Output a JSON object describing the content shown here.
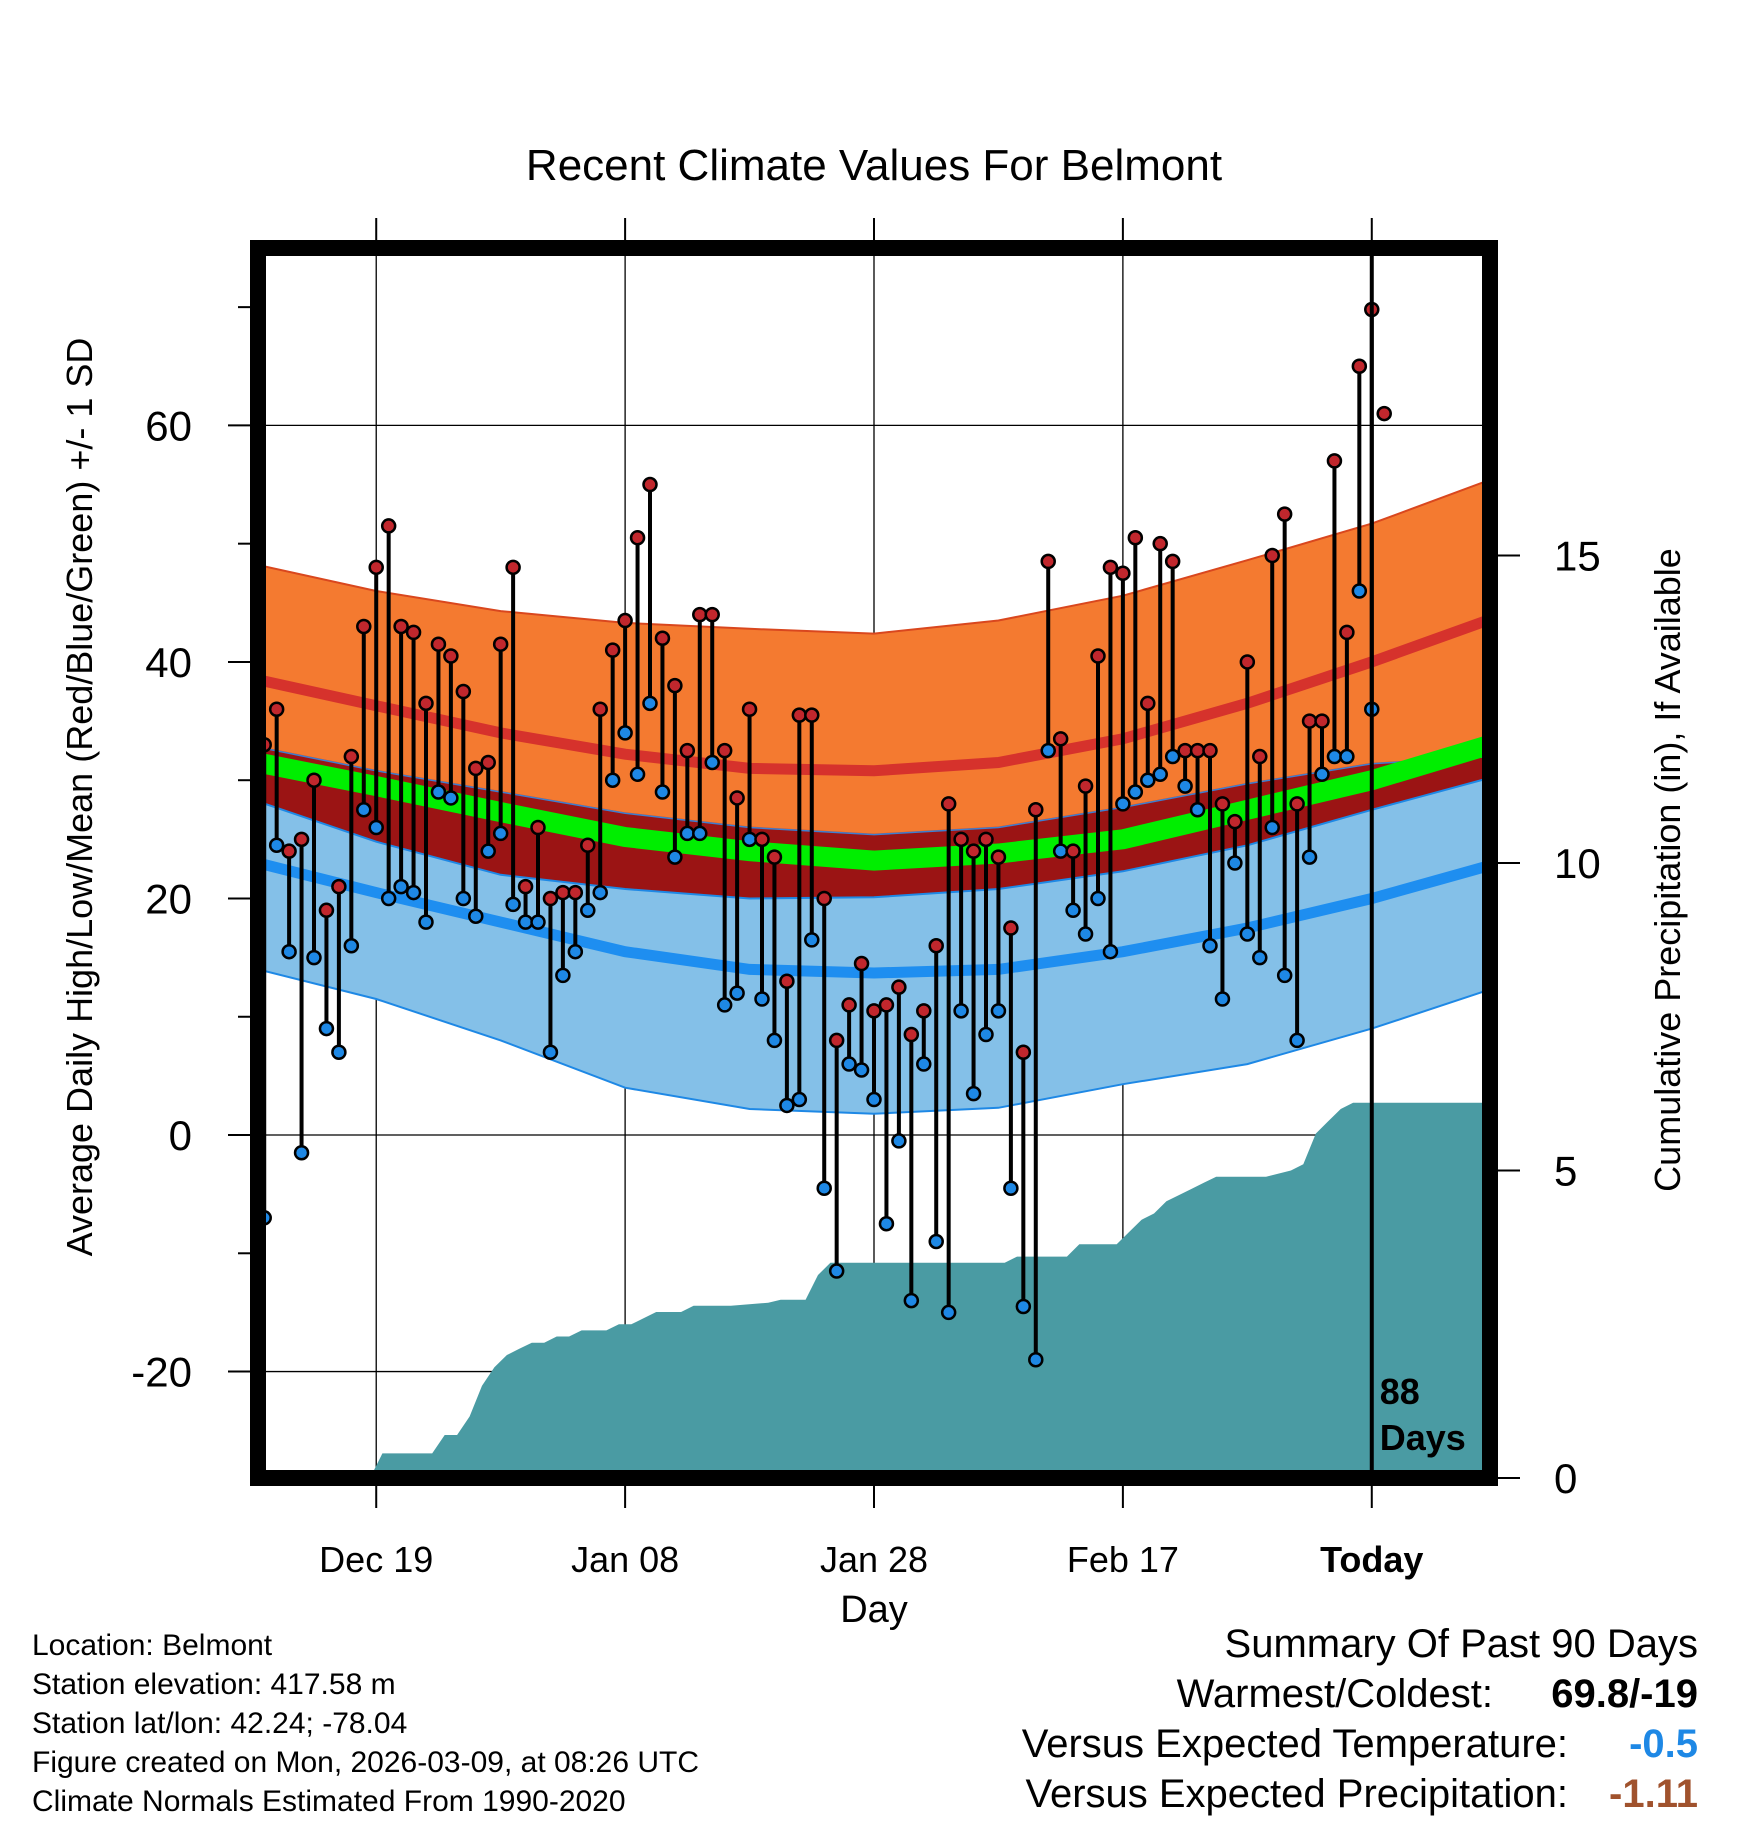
{
  "chart_data": {
    "type": "line",
    "title": "Recent Climate Values For Belmont",
    "xlabel": "Day",
    "ylabel": "Average Daily High/Low/Mean (Red/Blue/Green) +/- 1 SD",
    "y2label": "Cumulative Precipitation (in), If Available",
    "xlim": [
      -89.5,
      9.5
    ],
    "ylim": [
      -29,
      75
    ],
    "y2lim": [
      0,
      20
    ],
    "yticks": [
      -20,
      0,
      20,
      40,
      60
    ],
    "y2ticks": [
      0,
      5,
      10,
      15
    ],
    "xticks": [
      {
        "day": -80,
        "label": "Dec 19"
      },
      {
        "day": -60,
        "label": "Jan 08"
      },
      {
        "day": -40,
        "label": "Jan 28"
      },
      {
        "day": -20,
        "label": "Feb 17"
      },
      {
        "day": 0,
        "label": "Today"
      }
    ],
    "today_marker": {
      "day": 0,
      "label_line1": "88",
      "label_line2": "Days"
    },
    "normals": {
      "days": [
        -89.5,
        -80,
        -70,
        -60,
        -50,
        -40,
        -30,
        -20,
        -10,
        0,
        9.5
      ],
      "high_mean": [
        38.5,
        36.3,
        34.0,
        32.2,
        31.0,
        30.8,
        31.5,
        33.5,
        36.5,
        40.0,
        43.6
      ],
      "high_sd_upper": [
        48.2,
        46.0,
        44.3,
        43.3,
        42.8,
        42.4,
        43.5,
        45.6,
        48.6,
        51.7,
        55.4
      ],
      "low_mean": [
        23.0,
        20.5,
        18.0,
        15.5,
        14.0,
        13.7,
        14.0,
        15.5,
        17.5,
        20.0,
        22.8
      ],
      "low_sd_lower": [
        14.0,
        11.5,
        8.0,
        4.0,
        2.2,
        1.8,
        2.3,
        4.3,
        6.0,
        9.0,
        12.3
      ],
      "mean": [
        31.5,
        29.5,
        27.3,
        25.2,
        24.0,
        23.2,
        23.8,
        25.0,
        27.5,
        30.0,
        33.0
      ],
      "mean_sd_upper": [
        32.8,
        30.8,
        29.0,
        27.2,
        26.0,
        25.4,
        26.0,
        27.7,
        29.7,
        31.4,
        32.0
      ],
      "mean_sd_lower": [
        28.2,
        24.8,
        22.0,
        20.8,
        20.0,
        20.1,
        20.8,
        22.3,
        24.5,
        27.5,
        30.2
      ]
    },
    "series": [
      {
        "name": "High",
        "color": "#c1272d",
        "values": [
          33.0,
          36.0,
          24.0,
          25.0,
          30.0,
          19.0,
          21.0,
          32.0,
          43.0,
          48.0,
          51.5,
          43.0,
          42.5,
          36.5,
          41.5,
          40.5,
          37.5,
          31.0,
          31.5,
          41.5,
          48.0,
          21.0,
          26.0,
          20.0,
          20.5,
          20.5,
          24.5,
          36.0,
          41.0,
          43.5,
          50.5,
          55.0,
          42.0,
          38.0,
          32.5,
          44.0,
          44.0,
          32.5,
          28.5,
          36.0,
          25.0,
          23.5,
          13.0,
          35.5,
          35.5,
          20.0,
          8.0,
          11.0,
          14.5,
          10.5,
          11.0,
          12.5,
          8.5,
          10.5,
          16.0,
          28.0,
          25.0,
          24.0,
          25.0,
          23.5,
          17.5,
          7.0,
          27.5,
          48.5,
          33.5,
          24.0,
          29.5,
          40.5,
          48.0,
          47.5,
          50.5,
          36.5,
          50.0,
          48.5,
          32.5,
          32.5,
          32.5,
          28.0,
          26.5,
          40.0,
          32.0,
          49.0,
          52.5,
          28.0,
          35.0,
          35.0,
          57.0,
          42.5,
          65.0,
          69.8,
          61.0
        ]
      },
      {
        "name": "Low",
        "color": "#1e88e5",
        "values": [
          -7.0,
          24.5,
          15.5,
          -1.5,
          15.0,
          9.0,
          7.0,
          16.0,
          27.5,
          26.0,
          20.0,
          21.0,
          20.5,
          18.0,
          29.0,
          28.5,
          20.0,
          18.5,
          24.0,
          25.5,
          19.5,
          18.0,
          18.0,
          7.0,
          13.5,
          15.5,
          19.0,
          20.5,
          30.0,
          34.0,
          30.5,
          36.5,
          29.0,
          23.5,
          25.5,
          25.5,
          31.5,
          11.0,
          12.0,
          25.0,
          11.5,
          8.0,
          2.5,
          3.0,
          16.5,
          -4.5,
          -11.5,
          6.0,
          5.5,
          3.0,
          -7.5,
          -0.5,
          -14.0,
          6.0,
          -9.0,
          -15.0,
          10.5,
          3.5,
          8.5,
          10.5,
          -4.5,
          -14.5,
          -19.0,
          32.5,
          24.0,
          19.0,
          17.0,
          20.0,
          15.5,
          28.0,
          29.0,
          30.0,
          30.5,
          32.0,
          29.5,
          27.5,
          16.0,
          11.5,
          23.0,
          17.0,
          15.0,
          26.0,
          13.5,
          8.0,
          23.5,
          30.5,
          32.0,
          32.0,
          46.0,
          36.0,
          null
        ]
      }
    ],
    "precip_cumulative": {
      "days": [
        -89.5,
        -80.5,
        -79.5,
        -75.5,
        -74.5,
        -73.5,
        -72.5,
        -71.5,
        -70.5,
        -69.5,
        -68.5,
        -67.5,
        -66.5,
        -65.5,
        -64.5,
        -63.5,
        -61.5,
        -60.5,
        -59.5,
        -58.5,
        -57.5,
        -55.5,
        -54.5,
        -52.5,
        -51.5,
        -48.5,
        -47.5,
        -45.5,
        -44.5,
        -43.5,
        -29.5,
        -28.5,
        -24.5,
        -23.5,
        -20.5,
        -19.5,
        -18.5,
        -17.5,
        -16.5,
        -15.5,
        -14.5,
        -13.5,
        -12.5,
        -8.5,
        -6.5,
        -5.5,
        -4.5,
        -3.5,
        -2.5,
        -1.5,
        9.5
      ],
      "values": [
        0,
        0,
        0.4,
        0.4,
        0.7,
        0.7,
        1.0,
        1.5,
        1.8,
        2.0,
        2.1,
        2.2,
        2.2,
        2.3,
        2.3,
        2.4,
        2.4,
        2.5,
        2.5,
        2.6,
        2.7,
        2.7,
        2.8,
        2.8,
        2.8,
        2.85,
        2.9,
        2.9,
        3.3,
        3.5,
        3.5,
        3.6,
        3.6,
        3.8,
        3.8,
        4.0,
        4.2,
        4.3,
        4.5,
        4.6,
        4.7,
        4.8,
        4.9,
        4.9,
        5.0,
        5.1,
        5.6,
        5.8,
        6.0,
        6.1,
        6.1
      ]
    }
  },
  "footer": {
    "location": "Location: Belmont",
    "elevation": "Station elevation: 417.58 m",
    "latlon": "Station lat/lon: 42.24; -78.04",
    "created": "Figure created on Mon, 2026-03-09, at 08:26 UTC",
    "normals": "Climate Normals Estimated From 1990-2020"
  },
  "summary": {
    "title": "Summary Of Past 90 Days",
    "warmest_coldest_label": "Warmest/Coldest:",
    "warmest_coldest_value": "69.8/-19",
    "temp_label": "Versus Expected Temperature:",
    "temp_value": "-0.5",
    "temp_color": "#1e88e5",
    "precip_label": "Versus Expected Precipitation:",
    "precip_value": "-1.11",
    "precip_color": "#a0522d"
  }
}
